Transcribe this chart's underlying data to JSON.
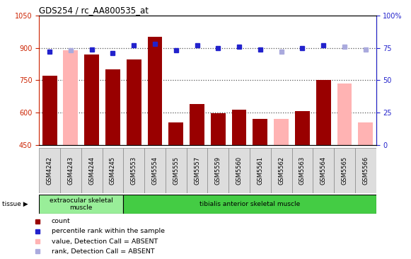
{
  "title": "GDS254 / rc_AA800535_at",
  "samples": [
    "GSM4242",
    "GSM4243",
    "GSM4244",
    "GSM4245",
    "GSM5553",
    "GSM5554",
    "GSM5555",
    "GSM5557",
    "GSM5559",
    "GSM5560",
    "GSM5561",
    "GSM5562",
    "GSM5563",
    "GSM5564",
    "GSM5565",
    "GSM5566"
  ],
  "bar_values": [
    770,
    null,
    870,
    800,
    845,
    950,
    555,
    640,
    598,
    615,
    570,
    null,
    607,
    753,
    null,
    null
  ],
  "bar_absent_values": [
    null,
    890,
    null,
    null,
    null,
    null,
    null,
    null,
    null,
    null,
    null,
    570,
    null,
    null,
    735,
    555
  ],
  "rank_values": [
    72,
    null,
    74,
    71,
    77,
    78,
    73,
    77,
    75,
    76,
    74,
    null,
    75,
    77,
    null,
    null
  ],
  "rank_absent_values": [
    null,
    73,
    null,
    null,
    null,
    null,
    null,
    null,
    null,
    null,
    null,
    72,
    null,
    null,
    76,
    74
  ],
  "bar_color": "#990000",
  "bar_absent_color": "#ffb3b3",
  "rank_color": "#2222cc",
  "rank_absent_color": "#aaaadd",
  "ylim_left": [
    450,
    1050
  ],
  "ylim_right": [
    0,
    100
  ],
  "yticks_left": [
    450,
    600,
    750,
    900,
    1050
  ],
  "yticks_right": [
    0,
    25,
    50,
    75,
    100
  ],
  "dotted_lines": [
    600,
    750,
    900
  ],
  "tissue_groups": [
    {
      "label": "extraocular skeletal\nmuscle",
      "start": 0,
      "end": 4,
      "color": "#99ee99"
    },
    {
      "label": "tibialis anterior skeletal muscle",
      "start": 4,
      "end": 16,
      "color": "#44cc44"
    }
  ],
  "bg_color": "#ffffff",
  "legend_items": [
    {
      "label": "count",
      "color": "#990000",
      "type": "square"
    },
    {
      "label": "percentile rank within the sample",
      "color": "#2222cc",
      "type": "square"
    },
    {
      "label": "value, Detection Call = ABSENT",
      "color": "#ffb3b3",
      "type": "square"
    },
    {
      "label": "rank, Detection Call = ABSENT",
      "color": "#aaaadd",
      "type": "square"
    }
  ]
}
